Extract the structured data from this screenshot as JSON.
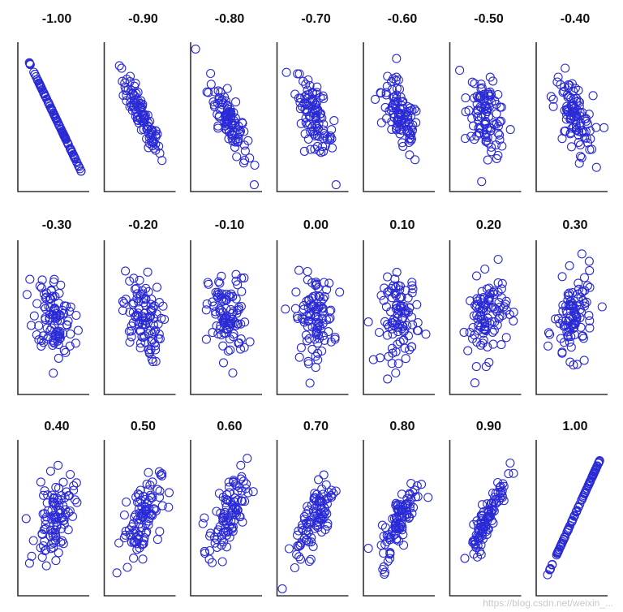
{
  "chart_data": {
    "type": "scatter",
    "layout_grid": "3 rows x 7 columns",
    "marker": "open circle",
    "marker_color": "#2a2ad6",
    "panel_titles": [
      "-1.00",
      "-0.90",
      "-0.80",
      "-0.70",
      "-0.60",
      "-0.50",
      "-0.40",
      "-0.30",
      "-0.20",
      "-0.10",
      "0.00",
      "0.10",
      "0.20",
      "0.30",
      "0.40",
      "0.50",
      "0.60",
      "0.70",
      "0.80",
      "0.90",
      "1.00"
    ],
    "correlations": [
      -1.0,
      -0.9,
      -0.8,
      -0.7,
      -0.6,
      -0.5,
      -0.4,
      -0.3,
      -0.2,
      -0.1,
      0.0,
      0.1,
      0.2,
      0.3,
      0.4,
      0.5,
      0.6,
      0.7,
      0.8,
      0.9,
      1.0
    ],
    "points_per_panel": 100,
    "x_axis_range": [
      -3,
      3
    ],
    "y_axis_range": [
      -3,
      3
    ],
    "grid": false,
    "legend": "none"
  },
  "watermark": "https://blog.csdn.net/weixin_..."
}
